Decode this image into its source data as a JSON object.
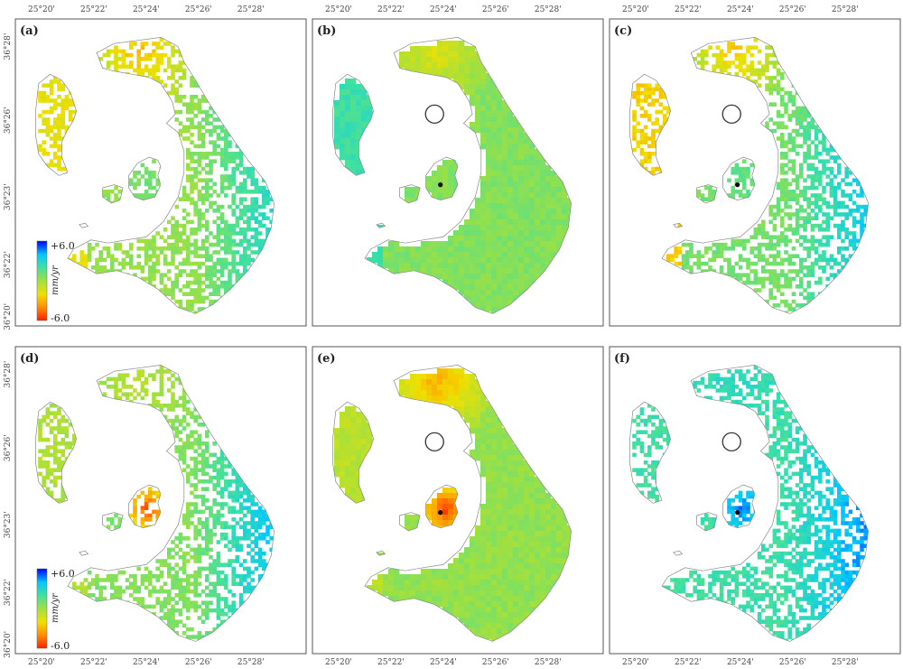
{
  "panel_labels": [
    "(a)",
    "(b)",
    "(c)",
    "(d)",
    "(e)",
    "(f)"
  ],
  "lon_ticks": [
    "25°20'",
    "25°22'",
    "25°24'",
    "25°26'",
    "25°28'"
  ],
  "lat_ticks": [
    "36°28'",
    "36°26'",
    "36°23'",
    "36°22'",
    "36°20'"
  ],
  "colorbar": {
    "max_label": "+6.0",
    "min_label": "-6.0",
    "unit": "mm/yr",
    "min": -6.0,
    "max": 6.0
  },
  "colors": {
    "scale": [
      "#0000ff",
      "#00c8ff",
      "#40e0a0",
      "#a0e040",
      "#f0e000",
      "#ff9000",
      "#ff2000"
    ],
    "frame": "#555555",
    "coast": "#888888",
    "caldera_marker": "#333333"
  },
  "panels": [
    {
      "style": "points",
      "base": 0.05,
      "north": -0.55,
      "east": 0.45,
      "west": -0.35,
      "kameni": 0.15,
      "center_marker": false,
      "dot_marker": false,
      "colorbar": true
    },
    {
      "style": "field",
      "base": 0.1,
      "north": -0.35,
      "east": 0.0,
      "west": 0.25,
      "kameni": 0.0,
      "center_marker": true,
      "dot_marker": true,
      "colorbar": false
    },
    {
      "style": "points",
      "base": 0.15,
      "north": -0.6,
      "east": 0.5,
      "west": -0.55,
      "kameni": 0.1,
      "center_marker": true,
      "dot_marker": true,
      "colorbar": false
    },
    {
      "style": "points",
      "base": 0.1,
      "north": -0.2,
      "east": 0.6,
      "west": -0.15,
      "kameni": -1.0,
      "center_marker": false,
      "dot_marker": false,
      "colorbar": true
    },
    {
      "style": "field",
      "base": 0.05,
      "north": -0.6,
      "east": 0.0,
      "west": -0.15,
      "kameni": -1.0,
      "center_marker": true,
      "dot_marker": true,
      "colorbar": false
    },
    {
      "style": "points",
      "base": 0.35,
      "north": 0.1,
      "east": 0.45,
      "west": 0.0,
      "kameni": 0.45,
      "center_marker": true,
      "dot_marker": true,
      "colorbar": false
    }
  ]
}
